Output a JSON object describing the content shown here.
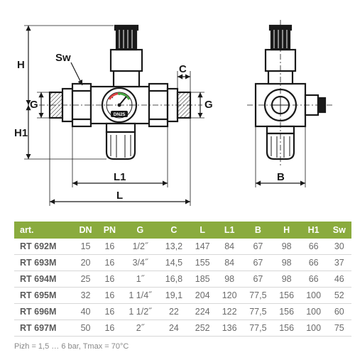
{
  "diagram": {
    "type": "infographic",
    "labels": [
      "H",
      "Sw",
      "G",
      "H1",
      "L1",
      "L",
      "C",
      "G",
      "B"
    ],
    "stroke_color": "#1a1a1a",
    "accent_color": "#8aab3e",
    "gauge_text": "DN25",
    "background_color": "#ffffff"
  },
  "table": {
    "header_bg": "#8aab3e",
    "header_fg": "#ffffff",
    "row_border": "#d7d7d7",
    "cell_fg": "#6b6b6b",
    "columns": [
      "art.",
      "DN",
      "PN",
      "G",
      "C",
      "L",
      "L1",
      "B",
      "H",
      "H1",
      "Sw"
    ],
    "rows": [
      [
        "RT 692M",
        "15",
        "16",
        "1/2˝",
        "13,2",
        "147",
        "84",
        "67",
        "98",
        "66",
        "30"
      ],
      [
        "RT 693M",
        "20",
        "16",
        "3/4˝",
        "14,5",
        "155",
        "84",
        "67",
        "98",
        "66",
        "37"
      ],
      [
        "RT 694M",
        "25",
        "16",
        "1˝",
        "16,8",
        "185",
        "98",
        "67",
        "98",
        "66",
        "46"
      ],
      [
        "RT 695M",
        "32",
        "16",
        "1 1/4˝",
        "19,1",
        "204",
        "120",
        "77,5",
        "156",
        "100",
        "52"
      ],
      [
        "RT 696M",
        "40",
        "16",
        "1 1/2˝",
        "22",
        "224",
        "122",
        "77,5",
        "156",
        "100",
        "60"
      ],
      [
        "RT 697M",
        "50",
        "16",
        "2˝",
        "24",
        "252",
        "136",
        "77,5",
        "156",
        "100",
        "75"
      ]
    ]
  },
  "footnote": "Pizh = 1,5 … 6 bar, Tmax = 70°C"
}
